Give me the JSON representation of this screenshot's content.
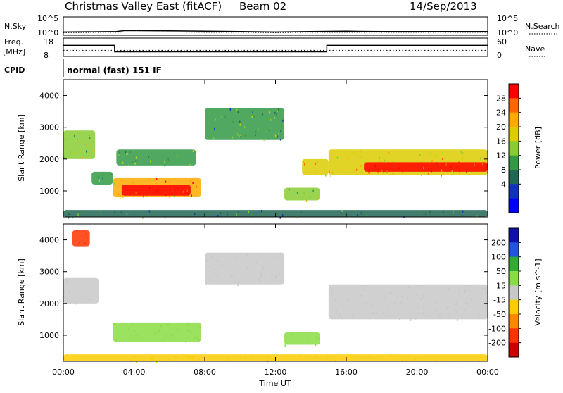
{
  "header": {
    "title": "Christmas Valley East (fitACF)",
    "beam": "Beam 02",
    "date": "14/Sep/2013"
  },
  "chart_data": [
    {
      "type": "line",
      "name": "summary-nsky-nsearch",
      "left_label": "N.Sky",
      "right_label": "N.Search",
      "left_ticks": [
        "10^5",
        "10^0"
      ],
      "right_ticks": [
        "10^5",
        "10^0"
      ],
      "x": [
        0,
        3,
        3.5,
        6,
        8,
        10,
        12,
        14,
        16,
        18,
        20,
        22,
        24
      ],
      "nsky_log": [
        0.9,
        1.0,
        1.3,
        1.2,
        1.1,
        1.0,
        0.9,
        1.0,
        1.1,
        1.0,
        1.0,
        1.0,
        1.0
      ],
      "nsearch_log": [
        0.7,
        0.8,
        0.9,
        0.9,
        0.8,
        0.8,
        0.7,
        0.8,
        0.8,
        0.8,
        0.8,
        0.8,
        0.8
      ],
      "ylim": [
        0,
        5
      ]
    },
    {
      "type": "line",
      "name": "summary-freq-nave",
      "left_label": "Freq.",
      "left_label2": "[MHz]",
      "right_label": "Nave",
      "left_ticks": [
        "18",
        "8"
      ],
      "right_ticks": [
        "60",
        "0"
      ],
      "freq_steps": [
        [
          0,
          14
        ],
        [
          2.9,
          14
        ],
        [
          2.9,
          10.5
        ],
        [
          14.9,
          10.5
        ],
        [
          14.9,
          14
        ],
        [
          24,
          14
        ]
      ],
      "nave_level": 20,
      "freq_ylim": [
        8,
        18
      ],
      "nave_ylim": [
        0,
        60
      ]
    },
    {
      "type": "table",
      "name": "cpid-row",
      "label": "CPID",
      "text": "normal (fast) 151 IF"
    },
    {
      "type": "heatmap",
      "name": "power-panel",
      "ylabel": "Slant Range [km]",
      "xlim": [
        0,
        24
      ],
      "ylim": [
        180,
        4500
      ],
      "yticks": [
        1000,
        2000,
        3000,
        4000
      ],
      "colorbar": {
        "label": "Power [dB]",
        "ticks": [
          "28",
          "24",
          "20",
          "16",
          "12",
          "8",
          "4"
        ],
        "colors": [
          "#ff0000",
          "#ff6600",
          "#ffaa00",
          "#ddcc00",
          "#88cc33",
          "#339944",
          "#226655",
          "#1133bb",
          "#0000ff"
        ]
      },
      "features": [
        {
          "t0": 0.0,
          "t1": 1.8,
          "r0": 2000,
          "r1": 2900,
          "value": 12
        },
        {
          "t0": 1.6,
          "t1": 2.8,
          "r0": 1200,
          "r1": 1600,
          "value": 9
        },
        {
          "t0": 2.8,
          "t1": 7.8,
          "r0": 800,
          "r1": 1400,
          "value": 20
        },
        {
          "t0": 3.3,
          "t1": 7.2,
          "r0": 850,
          "r1": 1200,
          "value": 28
        },
        {
          "t0": 3.0,
          "t1": 7.5,
          "r0": 1800,
          "r1": 2300,
          "value": 10
        },
        {
          "t0": 8.0,
          "t1": 12.5,
          "r0": 2600,
          "r1": 3600,
          "value": 8
        },
        {
          "t0": 13.5,
          "t1": 15.0,
          "r0": 1500,
          "r1": 2000,
          "value": 16
        },
        {
          "t0": 12.5,
          "t1": 14.5,
          "r0": 700,
          "r1": 1100,
          "value": 14
        },
        {
          "t0": 15.0,
          "t1": 24.0,
          "r0": 1500,
          "r1": 2300,
          "value": 18
        },
        {
          "t0": 17.0,
          "t1": 24.0,
          "r0": 1600,
          "r1": 1900,
          "value": 28
        },
        {
          "t0": 0.0,
          "t1": 24.0,
          "r0": 180,
          "r1": 400,
          "value": 6
        }
      ]
    },
    {
      "type": "heatmap",
      "name": "velocity-panel",
      "ylabel": "Slant Range [km]",
      "xlabel": "Time UT",
      "xlim": [
        0,
        24
      ],
      "ylim": [
        180,
        4500
      ],
      "yticks": [
        1000,
        2000,
        3000,
        4000
      ],
      "xticks": [
        "00:00",
        "04:00",
        "08:00",
        "12:00",
        "16:00",
        "20:00",
        "00:00"
      ],
      "colorbar": {
        "label": "Velocity [m s^-1]",
        "ticks": [
          "200",
          "100",
          "50",
          "15",
          "-15",
          "-50",
          "-100",
          "-200"
        ],
        "colors": [
          "#1111aa",
          "#2255dd",
          "#33aa33",
          "#88dd44",
          "#c8c8c8",
          "#ffcc00",
          "#ff8800",
          "#ff3300",
          "#cc0000"
        ]
      },
      "features": [
        {
          "t0": 0.0,
          "t1": 2.0,
          "r0": 2000,
          "r1": 2800,
          "value": 0
        },
        {
          "t0": 2.8,
          "t1": 7.8,
          "r0": 800,
          "r1": 1400,
          "value": 40
        },
        {
          "t0": 8.0,
          "t1": 12.5,
          "r0": 2600,
          "r1": 3600,
          "value": 0
        },
        {
          "t0": 15.0,
          "t1": 24.0,
          "r0": 1500,
          "r1": 2600,
          "value": 0
        },
        {
          "t0": 12.5,
          "t1": 14.5,
          "r0": 700,
          "r1": 1100,
          "value": 40
        },
        {
          "t0": 0.5,
          "t1": 1.5,
          "r0": 3800,
          "r1": 4300,
          "value": -180
        },
        {
          "t0": 0.0,
          "t1": 24.0,
          "r0": 180,
          "r1": 400,
          "value": -40
        }
      ]
    }
  ]
}
